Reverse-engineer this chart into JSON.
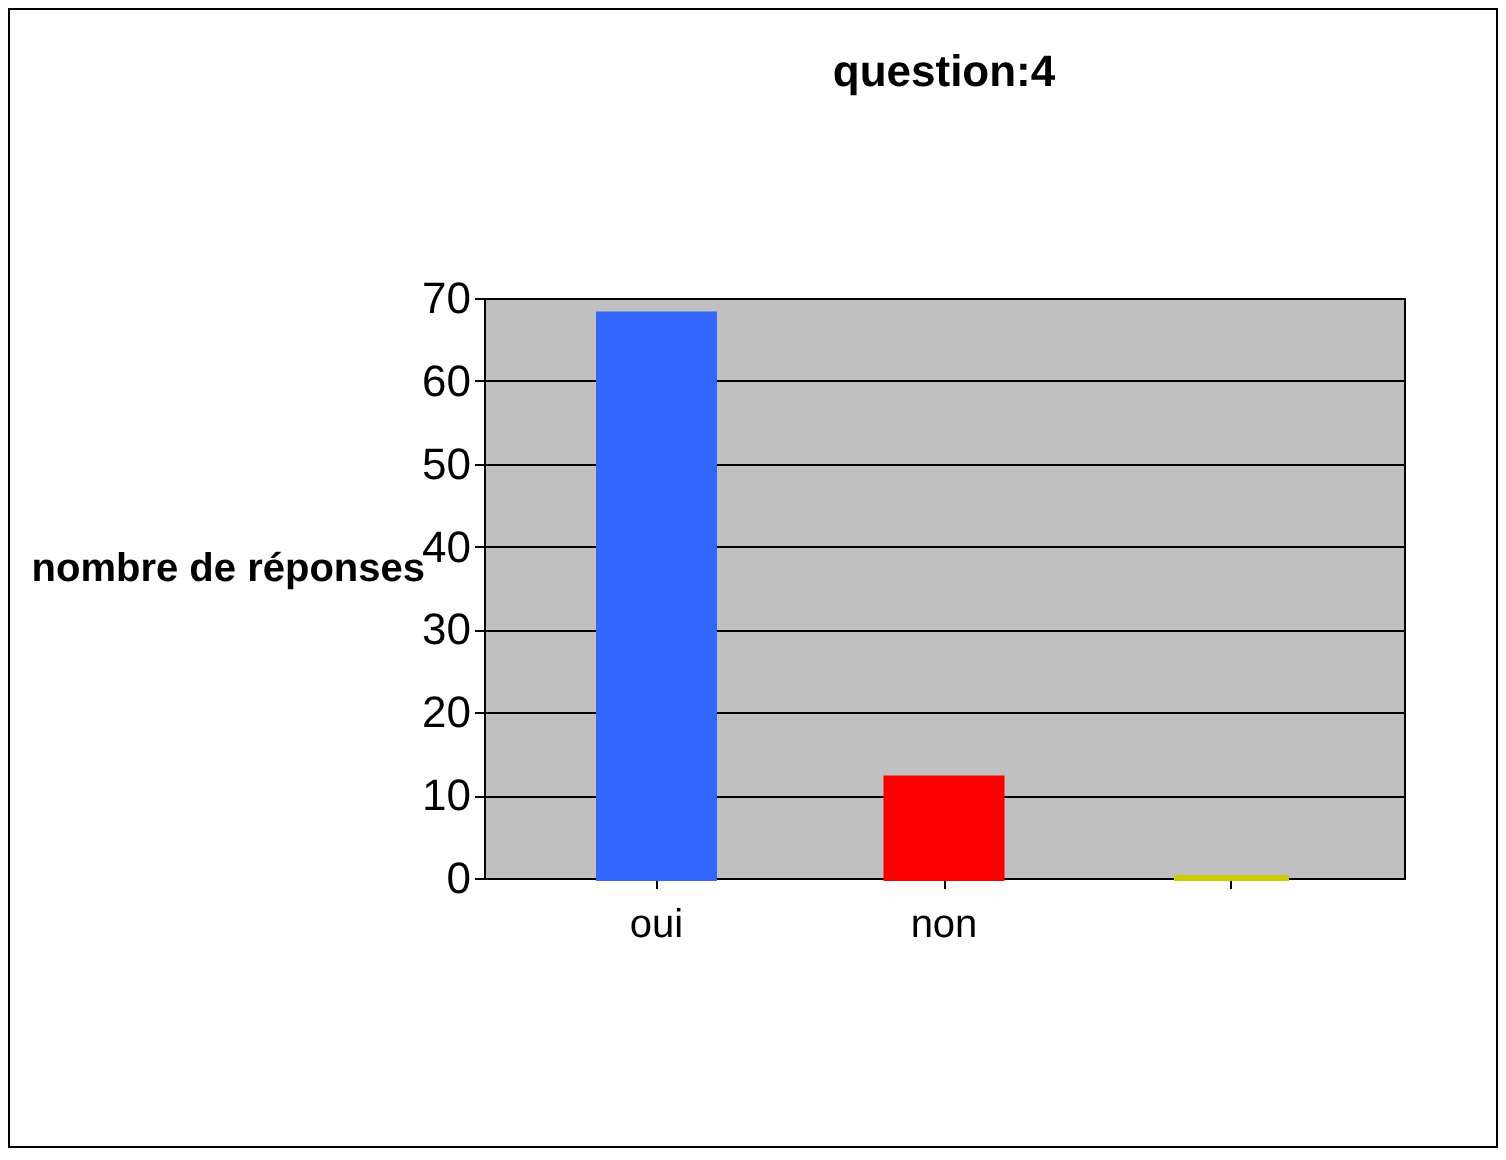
{
  "chart_data": {
    "type": "bar",
    "title": "question:4",
    "ylabel": "nombre de réponses",
    "categories": [
      "oui",
      "non",
      null
    ],
    "values": [
      68,
      12,
      0
    ],
    "colors": [
      "#3366ff",
      "#ff0000",
      "#cccc00"
    ],
    "ylim": [
      0,
      70
    ],
    "yticks": [
      0,
      10,
      20,
      30,
      40,
      50,
      60,
      70
    ],
    "grid": "y"
  }
}
